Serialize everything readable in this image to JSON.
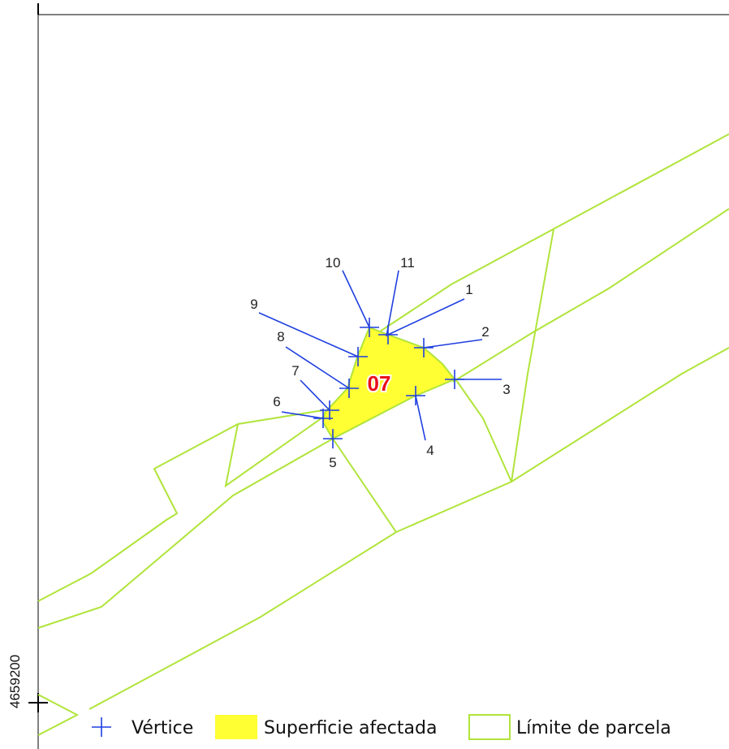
{
  "map": {
    "parcel_label": "07",
    "coordinate_label": "4659200",
    "vertices": [
      "1",
      "2",
      "3",
      "4",
      "5",
      "6",
      "7",
      "8",
      "9",
      "10",
      "11"
    ],
    "legend": [
      "Vértice",
      "Superficie afectada",
      "Límite de parcela"
    ]
  }
}
